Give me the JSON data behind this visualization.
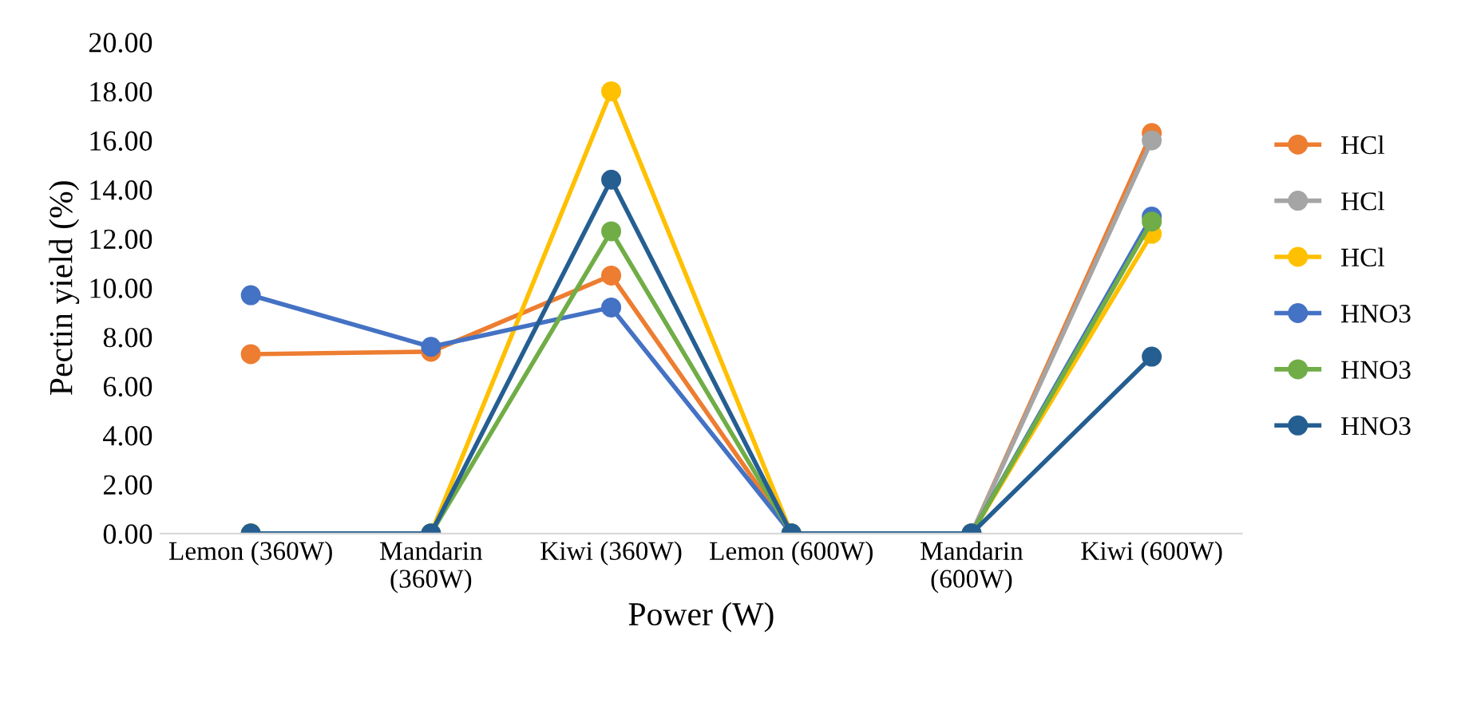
{
  "chart_data": {
    "type": "line",
    "xlabel": "Power (W)",
    "ylabel": "Pectin yield (%)",
    "categories": [
      "Lemon (360W)",
      "Mandarin\n(360W)",
      "Kiwi (360W)",
      "Lemon (600W)",
      "Mandarin\n(600W)",
      "Kiwi (600W)"
    ],
    "series": [
      {
        "name": "HCl",
        "color": "#ed7d31",
        "values": [
          7.3,
          7.4,
          10.5,
          0,
          0,
          16.3
        ]
      },
      {
        "name": "HCl",
        "color": "#a5a5a5",
        "values": [
          0,
          0,
          null,
          0,
          0,
          16.0
        ]
      },
      {
        "name": "HCl",
        "color": "#ffc000",
        "values": [
          0,
          0,
          18.0,
          0,
          0,
          12.2
        ]
      },
      {
        "name": "HNO3",
        "color": "#4472c4",
        "values": [
          9.7,
          7.6,
          9.2,
          0,
          0,
          12.9
        ]
      },
      {
        "name": "HNO3",
        "color": "#70ad47",
        "values": [
          0,
          0,
          12.3,
          0,
          0,
          12.7
        ]
      },
      {
        "name": "HNO3",
        "color": "#255e91",
        "values": [
          0,
          0,
          14.4,
          0,
          0,
          7.2
        ]
      }
    ],
    "ylim": [
      0,
      20
    ],
    "yticks": [
      {
        "value": 0,
        "label": "0.00"
      },
      {
        "value": 2,
        "label": "2.00"
      },
      {
        "value": 4,
        "label": "4.00"
      },
      {
        "value": 6,
        "label": "6.00"
      },
      {
        "value": 8,
        "label": "8.00"
      },
      {
        "value": 10,
        "label": "10.00"
      },
      {
        "value": 12,
        "label": "12.00"
      },
      {
        "value": 14,
        "label": "14.00"
      },
      {
        "value": 16,
        "label": "16.00"
      },
      {
        "value": 18,
        "label": "18.00"
      },
      {
        "value": 20,
        "label": "20.00"
      }
    ],
    "grid": false,
    "legend": "right",
    "marker": "circle",
    "line_style": "solid"
  }
}
